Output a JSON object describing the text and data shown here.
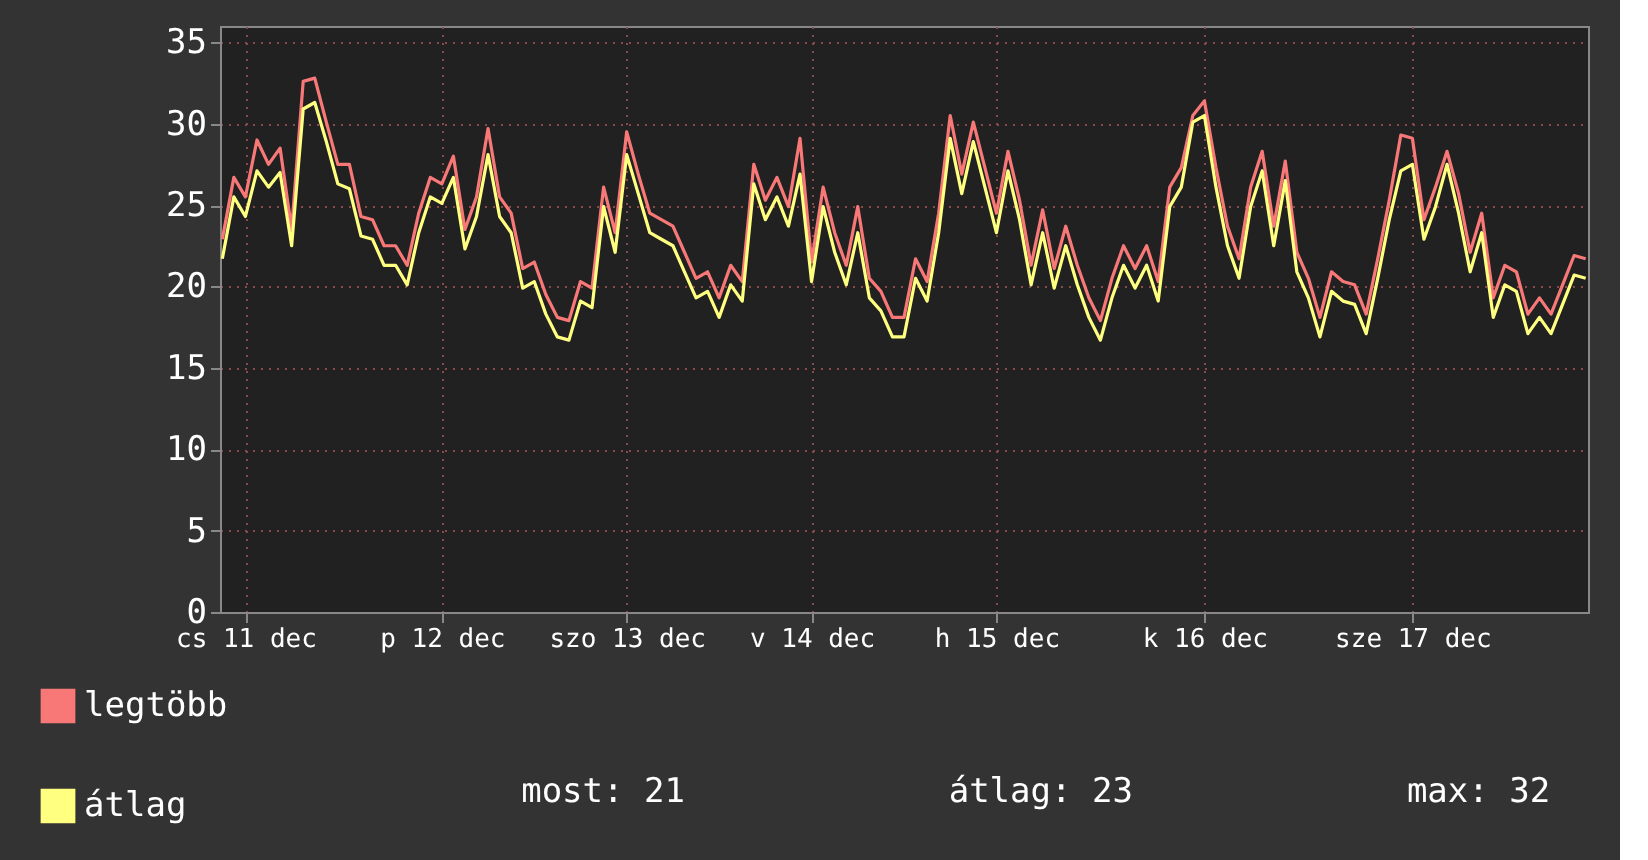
{
  "chart_data": {
    "type": "line",
    "categories": [
      null,
      null,
      "cs 11 dec",
      null,
      null,
      null,
      null,
      null,
      null,
      null,
      null,
      null,
      null,
      null,
      null,
      null,
      null,
      null,
      null,
      "p 12 dec",
      null,
      null,
      null,
      null,
      null,
      null,
      null,
      null,
      null,
      null,
      null,
      null,
      null,
      null,
      null,
      "szo 13 dec",
      null,
      null,
      null,
      null,
      null,
      null,
      null,
      null,
      null,
      null,
      null,
      null,
      null,
      null,
      null,
      "v 14 dec",
      null,
      null,
      null,
      null,
      null,
      null,
      null,
      null,
      null,
      null,
      null,
      null,
      null,
      null,
      null,
      "h 15 dec",
      null,
      null,
      null,
      null,
      null,
      null,
      null,
      null,
      null,
      null,
      null,
      null,
      null,
      null,
      null,
      null,
      null,
      "k 16 dec",
      null,
      null,
      null,
      null,
      null,
      null,
      null,
      null,
      null,
      null,
      null,
      null,
      null,
      null,
      null,
      null,
      null,
      "sze 17 dec",
      null,
      null,
      null,
      null,
      null,
      null,
      null,
      null,
      null,
      null,
      null,
      null,
      null,
      null,
      null
    ],
    "series": [
      {
        "name": "legtöbb",
        "color": "#f87878",
        "values": [
          22.9,
          26.7,
          25.5,
          29,
          27.5,
          28.5,
          23.5,
          32.6,
          32.8,
          30.1,
          27.5,
          27.5,
          24.3,
          24.1,
          22.5,
          22.5,
          21.3,
          24.5,
          26.7,
          26.3,
          28,
          23.5,
          25.5,
          29.7,
          25.5,
          24.5,
          21.1,
          21.5,
          19.5,
          18.1,
          17.9,
          20.3,
          19.9,
          26.1,
          23.3,
          29.5,
          26.9,
          24.5,
          24.1,
          23.7,
          22.1,
          20.5,
          20.9,
          19.3,
          21.3,
          20.3,
          27.5,
          25.3,
          26.7,
          24.9,
          29.1,
          21.5,
          26.1,
          23.3,
          21.3,
          24.9,
          20.5,
          19.7,
          18.1,
          18.1,
          21.7,
          20.3,
          24.5,
          30.5,
          26.9,
          30.1,
          27.3,
          24.5,
          28.3,
          25.3,
          21.3,
          24.7,
          21.1,
          23.7,
          21.3,
          19.3,
          17.9,
          20.5,
          22.5,
          21.1,
          22.5,
          20.3,
          26.1,
          27.3,
          30.5,
          31.4,
          27.3,
          23.7,
          21.7,
          26.1,
          28.3,
          23.7,
          27.7,
          22.1,
          20.5,
          18.1,
          20.9,
          20.3,
          20.1,
          18.3,
          21.7,
          25.3,
          29.3,
          29.1,
          24.1,
          26.1,
          28.3,
          25.7,
          22.1,
          24.5,
          19.3,
          21.3,
          20.9,
          18.3,
          19.3,
          18.3,
          20.1,
          21.9,
          21.7
        ]
      },
      {
        "name": "átlag",
        "color": "#ffff80",
        "values": [
          21.7,
          25.5,
          24.3,
          27.1,
          26.1,
          27,
          22.5,
          30.9,
          31.3,
          28.9,
          26.3,
          26,
          23.1,
          22.9,
          21.3,
          21.3,
          20.1,
          23.3,
          25.5,
          25.1,
          26.7,
          22.3,
          24.3,
          28.1,
          24.3,
          23.3,
          19.9,
          20.3,
          18.3,
          16.9,
          16.7,
          19.1,
          18.7,
          24.9,
          22.1,
          28.1,
          25.7,
          23.3,
          22.9,
          22.5,
          20.9,
          19.3,
          19.7,
          18.1,
          20.1,
          19.1,
          26.3,
          24.1,
          25.5,
          23.7,
          26.9,
          20.3,
          24.9,
          22.1,
          20.1,
          23.3,
          19.3,
          18.5,
          16.9,
          16.9,
          20.5,
          19.1,
          23.3,
          29.1,
          25.7,
          28.9,
          26.1,
          23.3,
          27.1,
          24.1,
          20.1,
          23.3,
          19.9,
          22.5,
          20.1,
          18.1,
          16.7,
          19.3,
          21.3,
          19.9,
          21.3,
          19.1,
          24.9,
          26.1,
          30.1,
          30.5,
          26.1,
          22.5,
          20.5,
          24.9,
          27.1,
          22.5,
          26.5,
          20.9,
          19.3,
          16.9,
          19.7,
          19.1,
          18.9,
          17.1,
          20.5,
          24.1,
          27.1,
          27.5,
          22.9,
          24.9,
          27.5,
          24.5,
          20.9,
          23.3,
          18.1,
          20.1,
          19.7,
          17.1,
          18.1,
          17.1,
          18.9,
          20.7,
          20.5
        ]
      }
    ],
    "ylim": [
      0,
      36
    ],
    "yticks": [
      0,
      5,
      10,
      15,
      20,
      25,
      30,
      35
    ],
    "grid": true,
    "legend": "bottom left",
    "line_style": "solid",
    "marker": "none",
    "annotations": [
      "most: 21",
      "átlag: 23",
      "max: 32"
    ]
  }
}
